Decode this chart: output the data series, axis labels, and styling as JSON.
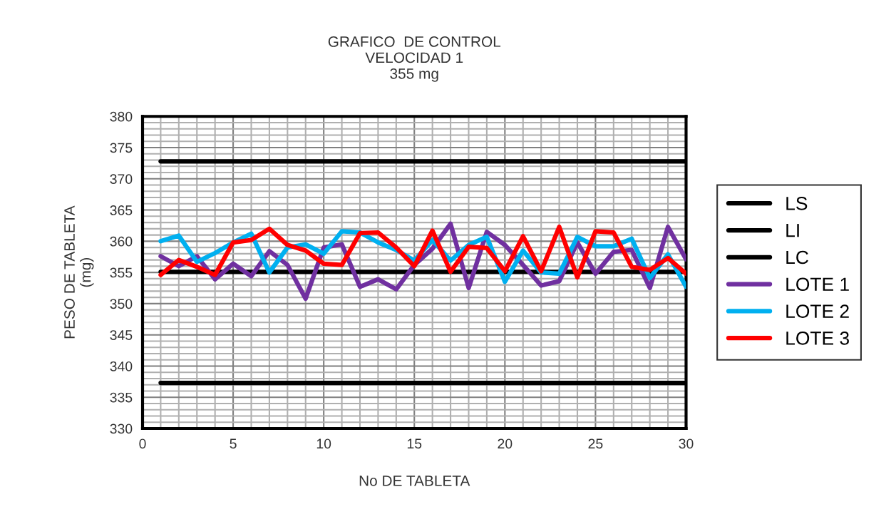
{
  "chart_data": {
    "type": "line",
    "title": "GRAFICO  DE CONTROL\nVELOCIDAD 1\n355 mg",
    "xlabel": "No DE TABLETA",
    "ylabel": "PESO DE TABLETA\n(mg)",
    "x": [
      1,
      2,
      3,
      4,
      5,
      6,
      7,
      8,
      9,
      10,
      11,
      12,
      13,
      14,
      15,
      16,
      17,
      18,
      19,
      20,
      21,
      22,
      23,
      24,
      25,
      26,
      27,
      28,
      29,
      30
    ],
    "xlim": [
      0,
      30
    ],
    "xticks": [
      0,
      5,
      10,
      15,
      20,
      25,
      30
    ],
    "ylim": [
      330,
      380
    ],
    "yticks": [
      330,
      335,
      340,
      345,
      350,
      355,
      360,
      365,
      370,
      375,
      380
    ],
    "grid": true,
    "legend": "right",
    "marker": "none",
    "line_style": "solid",
    "series": [
      {
        "name": "LS",
        "color": "#000000",
        "values": [
          372.8,
          372.8,
          372.8,
          372.8,
          372.8,
          372.8,
          372.8,
          372.8,
          372.8,
          372.8,
          372.8,
          372.8,
          372.8,
          372.8,
          372.8,
          372.8,
          372.8,
          372.8,
          372.8,
          372.8,
          372.8,
          372.8,
          372.8,
          372.8,
          372.8,
          372.8,
          372.8,
          372.8,
          372.8,
          372.8
        ]
      },
      {
        "name": "LI",
        "color": "#000000",
        "values": [
          337.3,
          337.3,
          337.3,
          337.3,
          337.3,
          337.3,
          337.3,
          337.3,
          337.3,
          337.3,
          337.3,
          337.3,
          337.3,
          337.3,
          337.3,
          337.3,
          337.3,
          337.3,
          337.3,
          337.3,
          337.3,
          337.3,
          337.3,
          337.3,
          337.3,
          337.3,
          337.3,
          337.3,
          337.3,
          337.3
        ]
      },
      {
        "name": "LC",
        "color": "#000000",
        "values": [
          355.1,
          355.1,
          355.1,
          355.1,
          355.1,
          355.1,
          355.1,
          355.1,
          355.1,
          355.1,
          355.1,
          355.1,
          355.1,
          355.1,
          355.1,
          355.1,
          355.1,
          355.1,
          355.1,
          355.1,
          355.1,
          355.1,
          355.1,
          355.1,
          355.1,
          355.1,
          355.1,
          355.1,
          355.1,
          355.1
        ]
      },
      {
        "name": "LOTE 1",
        "color": "#7030a0",
        "values": [
          357.6,
          356.0,
          357.6,
          353.9,
          356.4,
          354.4,
          358.4,
          356.2,
          350.8,
          359.0,
          359.5,
          352.7,
          353.9,
          352.3,
          356.2,
          358.8,
          362.8,
          352.5,
          361.5,
          359.4,
          356.2,
          352.9,
          353.6,
          359.8,
          354.8,
          358.3,
          358.6,
          352.5,
          362.3,
          357.1
        ]
      },
      {
        "name": "LOTE 2",
        "color": "#00b0f0",
        "values": [
          360.0,
          360.9,
          356.7,
          358.1,
          359.8,
          361.2,
          355.0,
          359.0,
          359.5,
          358.0,
          361.6,
          361.4,
          359.8,
          358.6,
          356.9,
          360.2,
          356.9,
          359.4,
          360.7,
          353.5,
          358.5,
          355.0,
          354.8,
          360.7,
          359.2,
          359.2,
          360.4,
          354.1,
          357.9,
          352.7
        ]
      },
      {
        "name": "LOTE 3",
        "color": "#ff0000",
        "values": [
          354.6,
          357.0,
          355.9,
          354.6,
          359.8,
          360.2,
          362.0,
          359.4,
          358.5,
          356.4,
          356.2,
          361.3,
          361.4,
          359.0,
          356.0,
          361.7,
          355.1,
          359.1,
          358.9,
          355.2,
          360.8,
          355.2,
          362.3,
          354.2,
          361.6,
          361.4,
          355.9,
          355.4,
          357.3,
          354.8
        ]
      }
    ]
  }
}
